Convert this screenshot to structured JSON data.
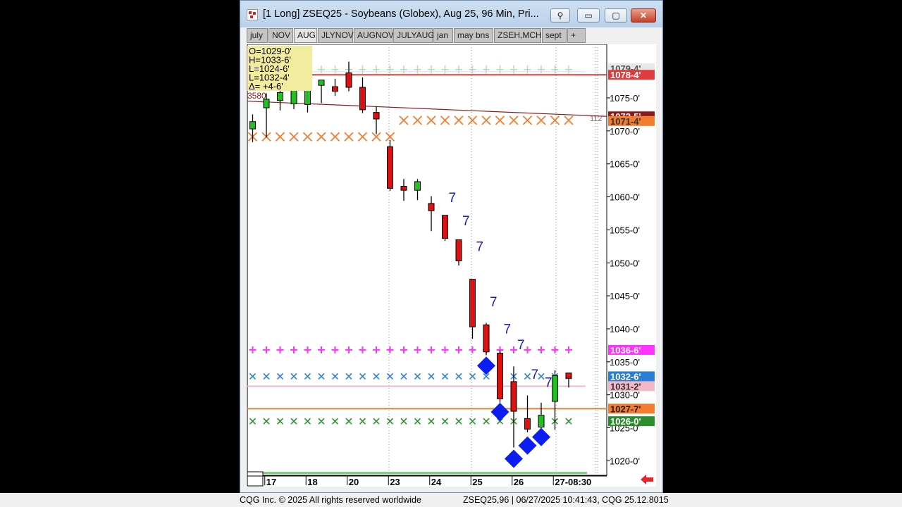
{
  "window": {
    "title": "[1 Long]  ZSEQ25 - Soybeans (Globex), Aug 25, 96 Min, Pri...",
    "controls": {
      "minimize": "▭",
      "maximize": "▢",
      "close": "✕"
    }
  },
  "tabs": [
    {
      "label": "july"
    },
    {
      "label": "NOV"
    },
    {
      "label": "AUG",
      "active": true
    },
    {
      "label": "JLYNOV"
    },
    {
      "label": "AUGNOV"
    },
    {
      "label": "JULYAUG"
    },
    {
      "label": "jan"
    },
    {
      "label": "may bns"
    },
    {
      "label": "ZSEH,MCH"
    },
    {
      "label": "sept"
    },
    {
      "label": "+"
    }
  ],
  "ohlc": {
    "o": "O=1029-0'",
    "h": "H=1033-6'",
    "l": "L=1024-6'",
    "last": "L=1032-4'",
    "delta": "Δ=    +4-6'"
  },
  "chart_data": {
    "type": "candlestick",
    "y_ticks": [
      "1075-0'",
      "1070-0'",
      "1065-0'",
      "1060-0'",
      "1055-0'",
      "1050-0'",
      "1045-0'",
      "1040-0'",
      "1035-0'",
      "1030-0'",
      "1025-0'",
      "1020-0'"
    ],
    "y_tick_values": [
      1075,
      1070,
      1065,
      1060,
      1055,
      1050,
      1045,
      1040,
      1035,
      1030,
      1025,
      1020
    ],
    "ylim": [
      1017.4,
      1080.5
    ],
    "x_labels": [
      "17",
      "18",
      "20",
      "23",
      "24",
      "25",
      "26",
      "27-08:30"
    ],
    "x_label_positions": [
      1.5,
      4.5,
      7.5,
      10.5,
      13.5,
      16.5,
      19.5,
      22.5
    ],
    "candles": [
      {
        "o": 1070.3,
        "h": 1072.5,
        "l": 1068.3,
        "c": 1071.4
      },
      {
        "o": 1073.5,
        "h": 1075.7,
        "l": 1069.0,
        "c": 1074.8
      },
      {
        "o": 1074.6,
        "h": 1076.8,
        "l": 1073.1,
        "c": 1075.8
      },
      {
        "o": 1074.1,
        "h": 1077.5,
        "l": 1073.3,
        "c": 1076.7
      },
      {
        "o": 1074.0,
        "h": 1076.9,
        "l": 1072.8,
        "c": 1076.2
      },
      {
        "o": 1076.9,
        "h": 1077.7,
        "l": 1074.2,
        "c": 1077.7
      },
      {
        "o": 1076.7,
        "h": 1077.9,
        "l": 1075.3,
        "c": 1076.0
      },
      {
        "o": 1078.8,
        "h": 1080.5,
        "l": 1076.0,
        "c": 1076.6
      },
      {
        "o": 1076.6,
        "h": 1078.1,
        "l": 1072.7,
        "c": 1073.2
      },
      {
        "o": 1072.8,
        "h": 1073.7,
        "l": 1069.5,
        "c": 1071.8
      },
      {
        "o": 1067.6,
        "h": 1068.6,
        "l": 1060.9,
        "c": 1061.3
      },
      {
        "o": 1061.6,
        "h": 1062.7,
        "l": 1059.4,
        "c": 1061.0
      },
      {
        "o": 1061.0,
        "h": 1062.7,
        "l": 1059.5,
        "c": 1062.3
      },
      {
        "o": 1059.0,
        "h": 1060.1,
        "l": 1054.8,
        "c": 1057.9
      },
      {
        "o": 1057.2,
        "h": 1057.2,
        "l": 1053.3,
        "c": 1053.7
      },
      {
        "o": 1053.5,
        "h": 1053.5,
        "l": 1049.6,
        "c": 1050.3
      },
      {
        "o": 1047.5,
        "h": 1047.5,
        "l": 1038.5,
        "c": 1040.3
      },
      {
        "o": 1040.6,
        "h": 1040.9,
        "l": 1036.0,
        "c": 1036.5
      },
      {
        "o": 1036.3,
        "h": 1036.8,
        "l": 1028.8,
        "c": 1029.4
      },
      {
        "o": 1032.0,
        "h": 1034.3,
        "l": 1022.0,
        "c": 1027.5
      },
      {
        "o": 1026.4,
        "h": 1029.9,
        "l": 1024.3,
        "c": 1024.8
      },
      {
        "o": 1025.1,
        "h": 1028.8,
        "l": 1024.9,
        "c": 1026.9
      },
      {
        "o": 1029.0,
        "h": 1033.7,
        "l": 1024.7,
        "c": 1032.9
      },
      {
        "o": 1033.3,
        "h": 1033.3,
        "l": 1031.1,
        "c": 1032.5
      }
    ],
    "tds_labels": [
      {
        "bar": 14,
        "y": 1059.2,
        "text": "7"
      },
      {
        "bar": 15,
        "y": 1055.7,
        "text": "7"
      },
      {
        "bar": 16,
        "y": 1051.8,
        "text": "7"
      },
      {
        "bar": 17,
        "y": 1043.4,
        "text": "7"
      },
      {
        "bar": 18,
        "y": 1039.3,
        "text": "7"
      },
      {
        "bar": 19,
        "y": 1036.9,
        "text": "7"
      },
      {
        "bar": 20,
        "y": 1032.4,
        "text": "7"
      },
      {
        "bar": 21,
        "y": 1031.2,
        "text": "7"
      }
    ],
    "diamonds": [
      {
        "bar": 17,
        "y": 1034.4
      },
      {
        "bar": 18,
        "y": 1027.4
      },
      {
        "bar": 19,
        "y": 1020.3
      },
      {
        "bar": 20,
        "y": 1022.3
      },
      {
        "bar": 21,
        "y": 1023.6
      }
    ],
    "levels": [
      {
        "value": 1078.5,
        "color": "#e23b3b",
        "label": "1078-4'",
        "style": "line"
      },
      {
        "value": 1036.8,
        "color": "#ff33ff",
        "label": "1036-6'",
        "style": "plus"
      },
      {
        "value": 1032.8,
        "color": "#2a7fd4",
        "label": "1032-6'",
        "style": "x"
      },
      {
        "value": 1031.3,
        "color": "#f2b8c8",
        "label": "1031-2'",
        "style": "line"
      },
      {
        "value": 1027.9,
        "color": "#f47c2f",
        "label": "1027-7'",
        "style": "line"
      },
      {
        "value": 1026.0,
        "color": "#2a8f2a",
        "label": "1026-0'",
        "style": "x"
      }
    ],
    "trend_line": {
      "from": 1074.5,
      "to": 1072.2,
      "color": "#8b1a1a",
      "label": "1072-5'",
      "tag": "112"
    },
    "other_labels": [
      {
        "text": "1071-4'",
        "color": "#f47c2f",
        "value": 1071.5
      },
      {
        "text": "1079-4'",
        "color": "#cccccc",
        "value": 1079.5
      }
    ],
    "orange_x_levels": [
      {
        "value": 1069.1,
        "from_bar": 0,
        "to_bar": 10
      },
      {
        "value": 1071.6,
        "from_bar": 11,
        "to_bar": 23
      }
    ],
    "gray_plus_level": 1079.3,
    "left_marker": "3580",
    "arrow_color": "#e8242a"
  },
  "footer": {
    "copyright": "CQG Inc. © 2025 All rights reserved worldwide",
    "status": "ZSEQ25,96 | 06/27/2025 10:41:43, CQG 25.12.8015"
  }
}
